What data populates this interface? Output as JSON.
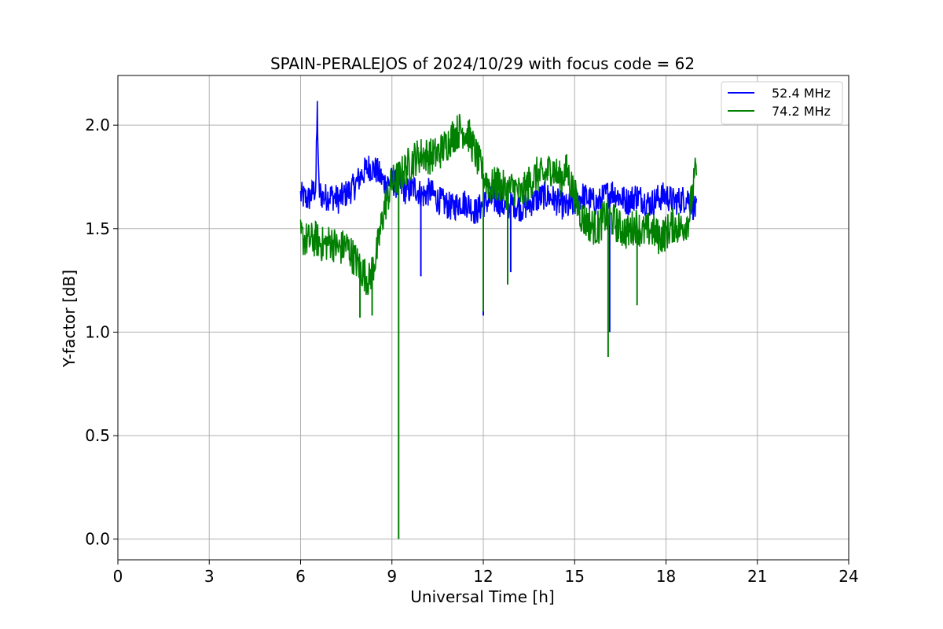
{
  "chart_data": {
    "type": "line",
    "title": "SPAIN-PERALEJOS of 2024/10/29 with focus code = 62",
    "xlabel": "Universal Time [h]",
    "ylabel": "Y-factor [dB]",
    "xlim": [
      0,
      24
    ],
    "ylim": [
      -0.1,
      2.24
    ],
    "xticks": [
      0,
      3,
      6,
      9,
      12,
      15,
      18,
      21,
      24
    ],
    "xtick_labels": [
      "0",
      "3",
      "6",
      "9",
      "12",
      "15",
      "18",
      "21",
      "24"
    ],
    "yticks": [
      0.0,
      0.5,
      1.0,
      1.5,
      2.0
    ],
    "ytick_labels": [
      "0.0",
      "0.5",
      "1.0",
      "1.5",
      "2.0"
    ],
    "grid": true,
    "legend_position": "top-right",
    "series": [
      {
        "name": "52.4 MHz",
        "color": "#0000ff",
        "x": [
          6.0,
          6.25,
          6.5,
          6.55,
          6.6,
          6.75,
          7.0,
          7.25,
          7.5,
          7.75,
          8.0,
          8.25,
          8.5,
          8.75,
          9.0,
          9.25,
          9.5,
          9.75,
          10.0,
          10.25,
          10.5,
          10.75,
          11.0,
          11.25,
          11.5,
          11.75,
          12.0,
          12.25,
          12.5,
          12.75,
          13.0,
          13.25,
          13.5,
          13.75,
          14.0,
          14.25,
          14.5,
          14.75,
          15.0,
          15.25,
          15.5,
          15.75,
          16.0,
          16.25,
          16.5,
          16.75,
          17.0,
          17.25,
          17.5,
          17.75,
          18.0,
          18.25,
          18.5,
          18.75,
          19.0
        ],
        "y": [
          1.66,
          1.64,
          1.7,
          2.09,
          1.68,
          1.65,
          1.66,
          1.64,
          1.67,
          1.7,
          1.76,
          1.8,
          1.78,
          1.72,
          1.73,
          1.7,
          1.68,
          1.7,
          1.66,
          1.68,
          1.64,
          1.62,
          1.6,
          1.63,
          1.62,
          1.58,
          1.62,
          1.64,
          1.63,
          1.6,
          1.62,
          1.6,
          1.62,
          1.64,
          1.66,
          1.65,
          1.62,
          1.6,
          1.62,
          1.66,
          1.64,
          1.62,
          1.66,
          1.68,
          1.65,
          1.63,
          1.66,
          1.64,
          1.62,
          1.65,
          1.66,
          1.63,
          1.64,
          1.65,
          1.58
        ],
        "dips": [
          {
            "x": 9.95,
            "y": 1.27
          },
          {
            "x": 12.0,
            "y": 1.08
          },
          {
            "x": 12.9,
            "y": 1.29
          },
          {
            "x": 16.15,
            "y": 1.0
          }
        ]
      },
      {
        "name": "74.2 MHz",
        "color": "#008000",
        "x": [
          6.0,
          6.25,
          6.5,
          6.75,
          7.0,
          7.25,
          7.5,
          7.75,
          8.0,
          8.25,
          8.5,
          8.75,
          9.0,
          9.25,
          9.5,
          9.75,
          10.0,
          10.25,
          10.5,
          10.75,
          11.0,
          11.25,
          11.5,
          11.75,
          12.0,
          12.25,
          12.5,
          12.75,
          13.0,
          13.25,
          13.5,
          13.75,
          14.0,
          14.25,
          14.5,
          14.75,
          15.0,
          15.25,
          15.5,
          15.75,
          16.0,
          16.25,
          16.5,
          16.75,
          17.0,
          17.25,
          17.5,
          17.75,
          18.0,
          18.25,
          18.5,
          18.75,
          19.0
        ],
        "y": [
          1.46,
          1.44,
          1.45,
          1.42,
          1.44,
          1.4,
          1.42,
          1.36,
          1.3,
          1.25,
          1.38,
          1.6,
          1.72,
          1.75,
          1.8,
          1.84,
          1.86,
          1.85,
          1.86,
          1.9,
          1.95,
          1.98,
          1.96,
          1.86,
          1.76,
          1.7,
          1.72,
          1.68,
          1.7,
          1.66,
          1.72,
          1.76,
          1.75,
          1.8,
          1.74,
          1.78,
          1.66,
          1.55,
          1.52,
          1.5,
          1.56,
          1.54,
          1.5,
          1.48,
          1.52,
          1.48,
          1.5,
          1.46,
          1.48,
          1.52,
          1.5,
          1.55,
          1.8
        ],
        "dips": [
          {
            "x": 7.95,
            "y": 1.07
          },
          {
            "x": 8.35,
            "y": 1.08
          },
          {
            "x": 9.22,
            "y": 0.0
          },
          {
            "x": 12.0,
            "y": 1.1
          },
          {
            "x": 12.8,
            "y": 1.23
          },
          {
            "x": 16.1,
            "y": 0.88
          },
          {
            "x": 17.05,
            "y": 1.13
          }
        ]
      }
    ]
  }
}
